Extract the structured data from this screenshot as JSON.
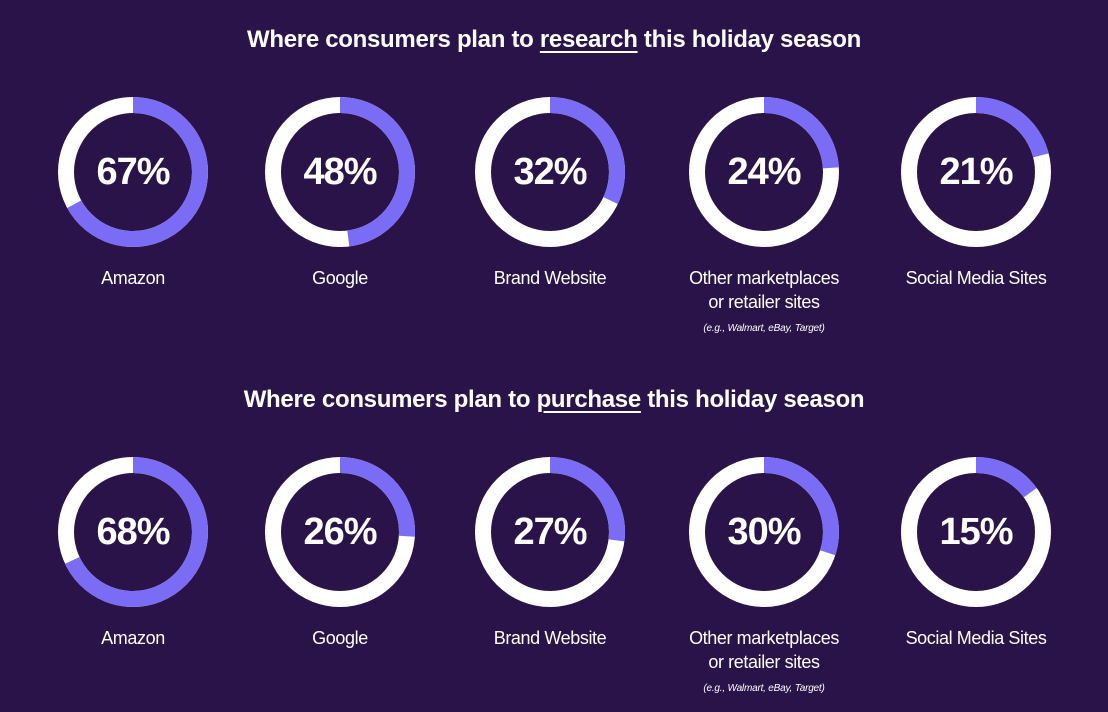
{
  "colors": {
    "background": "#2a1349",
    "track": "#ffffff",
    "fill": "#7b6cf6"
  },
  "sections": [
    {
      "title_pre": "Where consumers plan to ",
      "title_keyword": "research",
      "title_post": " this holiday season"
    },
    {
      "title_pre": "Where consumers plan to ",
      "title_keyword": "purchase",
      "title_post": " this holiday season"
    }
  ],
  "chart_data": [
    {
      "type": "pie",
      "title": "Where consumers plan to research this holiday season",
      "categories": [
        "Amazon",
        "Google",
        "Brand Website",
        "Other marketplaces or retailer sites",
        "Social Media Sites"
      ],
      "values": [
        67,
        48,
        32,
        24,
        21
      ],
      "value_labels": [
        "67%",
        "48%",
        "32%",
        "24%",
        "21%"
      ],
      "label_lines": [
        [
          "Amazon"
        ],
        [
          "Google"
        ],
        [
          "Brand Website"
        ],
        [
          "Other marketplaces",
          "or retailer sites"
        ],
        [
          "Social Media Sites"
        ]
      ],
      "note": "(e.g., Walmart, eBay, Target)"
    },
    {
      "type": "pie",
      "title": "Where consumers plan to purchase this holiday season",
      "categories": [
        "Amazon",
        "Google",
        "Brand Website",
        "Other marketplaces or retailer sites",
        "Social Media Sites"
      ],
      "values": [
        68,
        26,
        27,
        30,
        15
      ],
      "value_labels": [
        "68%",
        "26%",
        "27%",
        "30%",
        "15%"
      ],
      "label_lines": [
        [
          "Amazon"
        ],
        [
          "Google"
        ],
        [
          "Brand Website"
        ],
        [
          "Other marketplaces",
          "or retailer sites"
        ],
        [
          "Social Media Sites"
        ]
      ],
      "note": "(e.g., Walmart, eBay, Target)"
    }
  ]
}
